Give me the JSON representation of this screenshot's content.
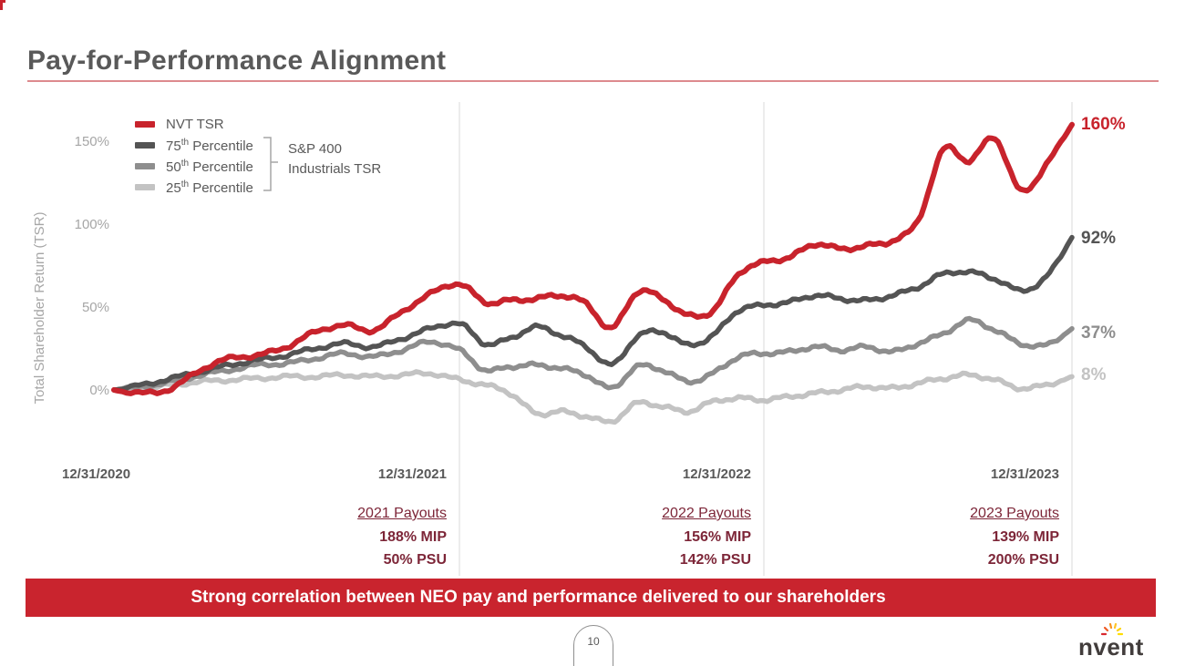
{
  "slide": {
    "title": "Pay-for-Performance Alignment",
    "page_number": "10",
    "banner_text": "Strong correlation between NEO pay and performance delivered to our shareholders",
    "logo_text": "nvent"
  },
  "colors": {
    "nvt_red": "#c8232c",
    "banner_red": "#c9242e",
    "payout_maroon": "#7d2638",
    "gray_75": "#545454",
    "gray_50": "#8e8e8e",
    "gray_25": "#c3c3c3",
    "heading_gray": "#595959",
    "axis_gray": "#a6a6a6",
    "grid_gray": "#d9d9d9",
    "title_rule_pink": "#dd8a8e"
  },
  "chart_data": {
    "type": "line",
    "title": "",
    "ylabel": "Total Shareholder Return (TSR)",
    "xlabel": "",
    "x_unit": "months after 12/31/2020",
    "x_tick_labels": [
      "12/31/2020",
      "12/31/2021",
      "12/31/2022",
      "12/31/2023"
    ],
    "y_ticks": [
      {
        "label": "150%",
        "value": 150
      },
      {
        "label": "100%",
        "value": 100
      },
      {
        "label": "50%",
        "value": 50
      },
      {
        "label": "0%",
        "value": 0
      }
    ],
    "ylim": [
      -25,
      170
    ],
    "grid": "vertical lines at each year end",
    "legend_position": "top-left",
    "legend_group": {
      "line1": "S&P 400",
      "line2": "Industrials TSR"
    },
    "series": [
      {
        "name": "NVT TSR",
        "label": {
          "pre": "NVT TSR"
        },
        "color": "#c8232c",
        "end_label": "160%",
        "end_value": 160,
        "values": [
          0,
          -2,
          1,
          12,
          19,
          21,
          26,
          35,
          39,
          36,
          47,
          58,
          64,
          53,
          54,
          55,
          57,
          52,
          37,
          59,
          55,
          45,
          48,
          70,
          77,
          80,
          88,
          85,
          87,
          90,
          102,
          145,
          138,
          152,
          120,
          136,
          160
        ]
      },
      {
        "name": "75th Percentile",
        "label": {
          "pre": "75",
          "sup": "th",
          "post": " Percentile"
        },
        "color": "#545454",
        "end_label": "92%",
        "end_value": 92,
        "values": [
          0,
          3,
          7,
          11,
          15,
          18,
          21,
          25,
          28,
          26,
          31,
          37,
          40,
          28,
          31,
          38,
          33,
          26,
          15,
          32,
          35,
          27,
          33,
          48,
          51,
          53,
          57,
          55,
          54,
          57,
          62,
          70,
          71,
          67,
          60,
          68,
          92
        ]
      },
      {
        "name": "50th Percentile",
        "label": {
          "pre": "50",
          "sup": "th",
          "post": " Percentile"
        },
        "color": "#8e8e8e",
        "end_label": "37%",
        "end_value": 37,
        "values": [
          0,
          2,
          5,
          9,
          12,
          15,
          16,
          19,
          22,
          20,
          24,
          29,
          24,
          12,
          14,
          15,
          13,
          9,
          1,
          14,
          12,
          5,
          10,
          20,
          22,
          23,
          26,
          24,
          26,
          23,
          28,
          34,
          42,
          36,
          28,
          27,
          37
        ]
      },
      {
        "name": "25th Percentile",
        "label": {
          "pre": "25",
          "sup": "th",
          "post": " Percentile"
        },
        "color": "#c3c3c3",
        "end_label": "8%",
        "end_value": 8,
        "values": [
          0,
          1,
          3,
          5,
          6,
          7,
          8,
          8,
          9,
          8,
          9,
          10,
          6,
          3,
          -2,
          -14,
          -13,
          -16,
          -19,
          -8,
          -10,
          -13,
          -7,
          -5,
          -6,
          -4,
          -2,
          0,
          2,
          1,
          4,
          7,
          9,
          6,
          1,
          3,
          8
        ]
      }
    ]
  },
  "payouts": [
    {
      "title": "2021 Payouts",
      "mip": "188% MIP",
      "psu": "50% PSU"
    },
    {
      "title": "2022 Payouts",
      "mip": "156% MIP",
      "psu": "142% PSU"
    },
    {
      "title": "2023 Payouts",
      "mip": "139% MIP",
      "psu": "200% PSU"
    }
  ]
}
